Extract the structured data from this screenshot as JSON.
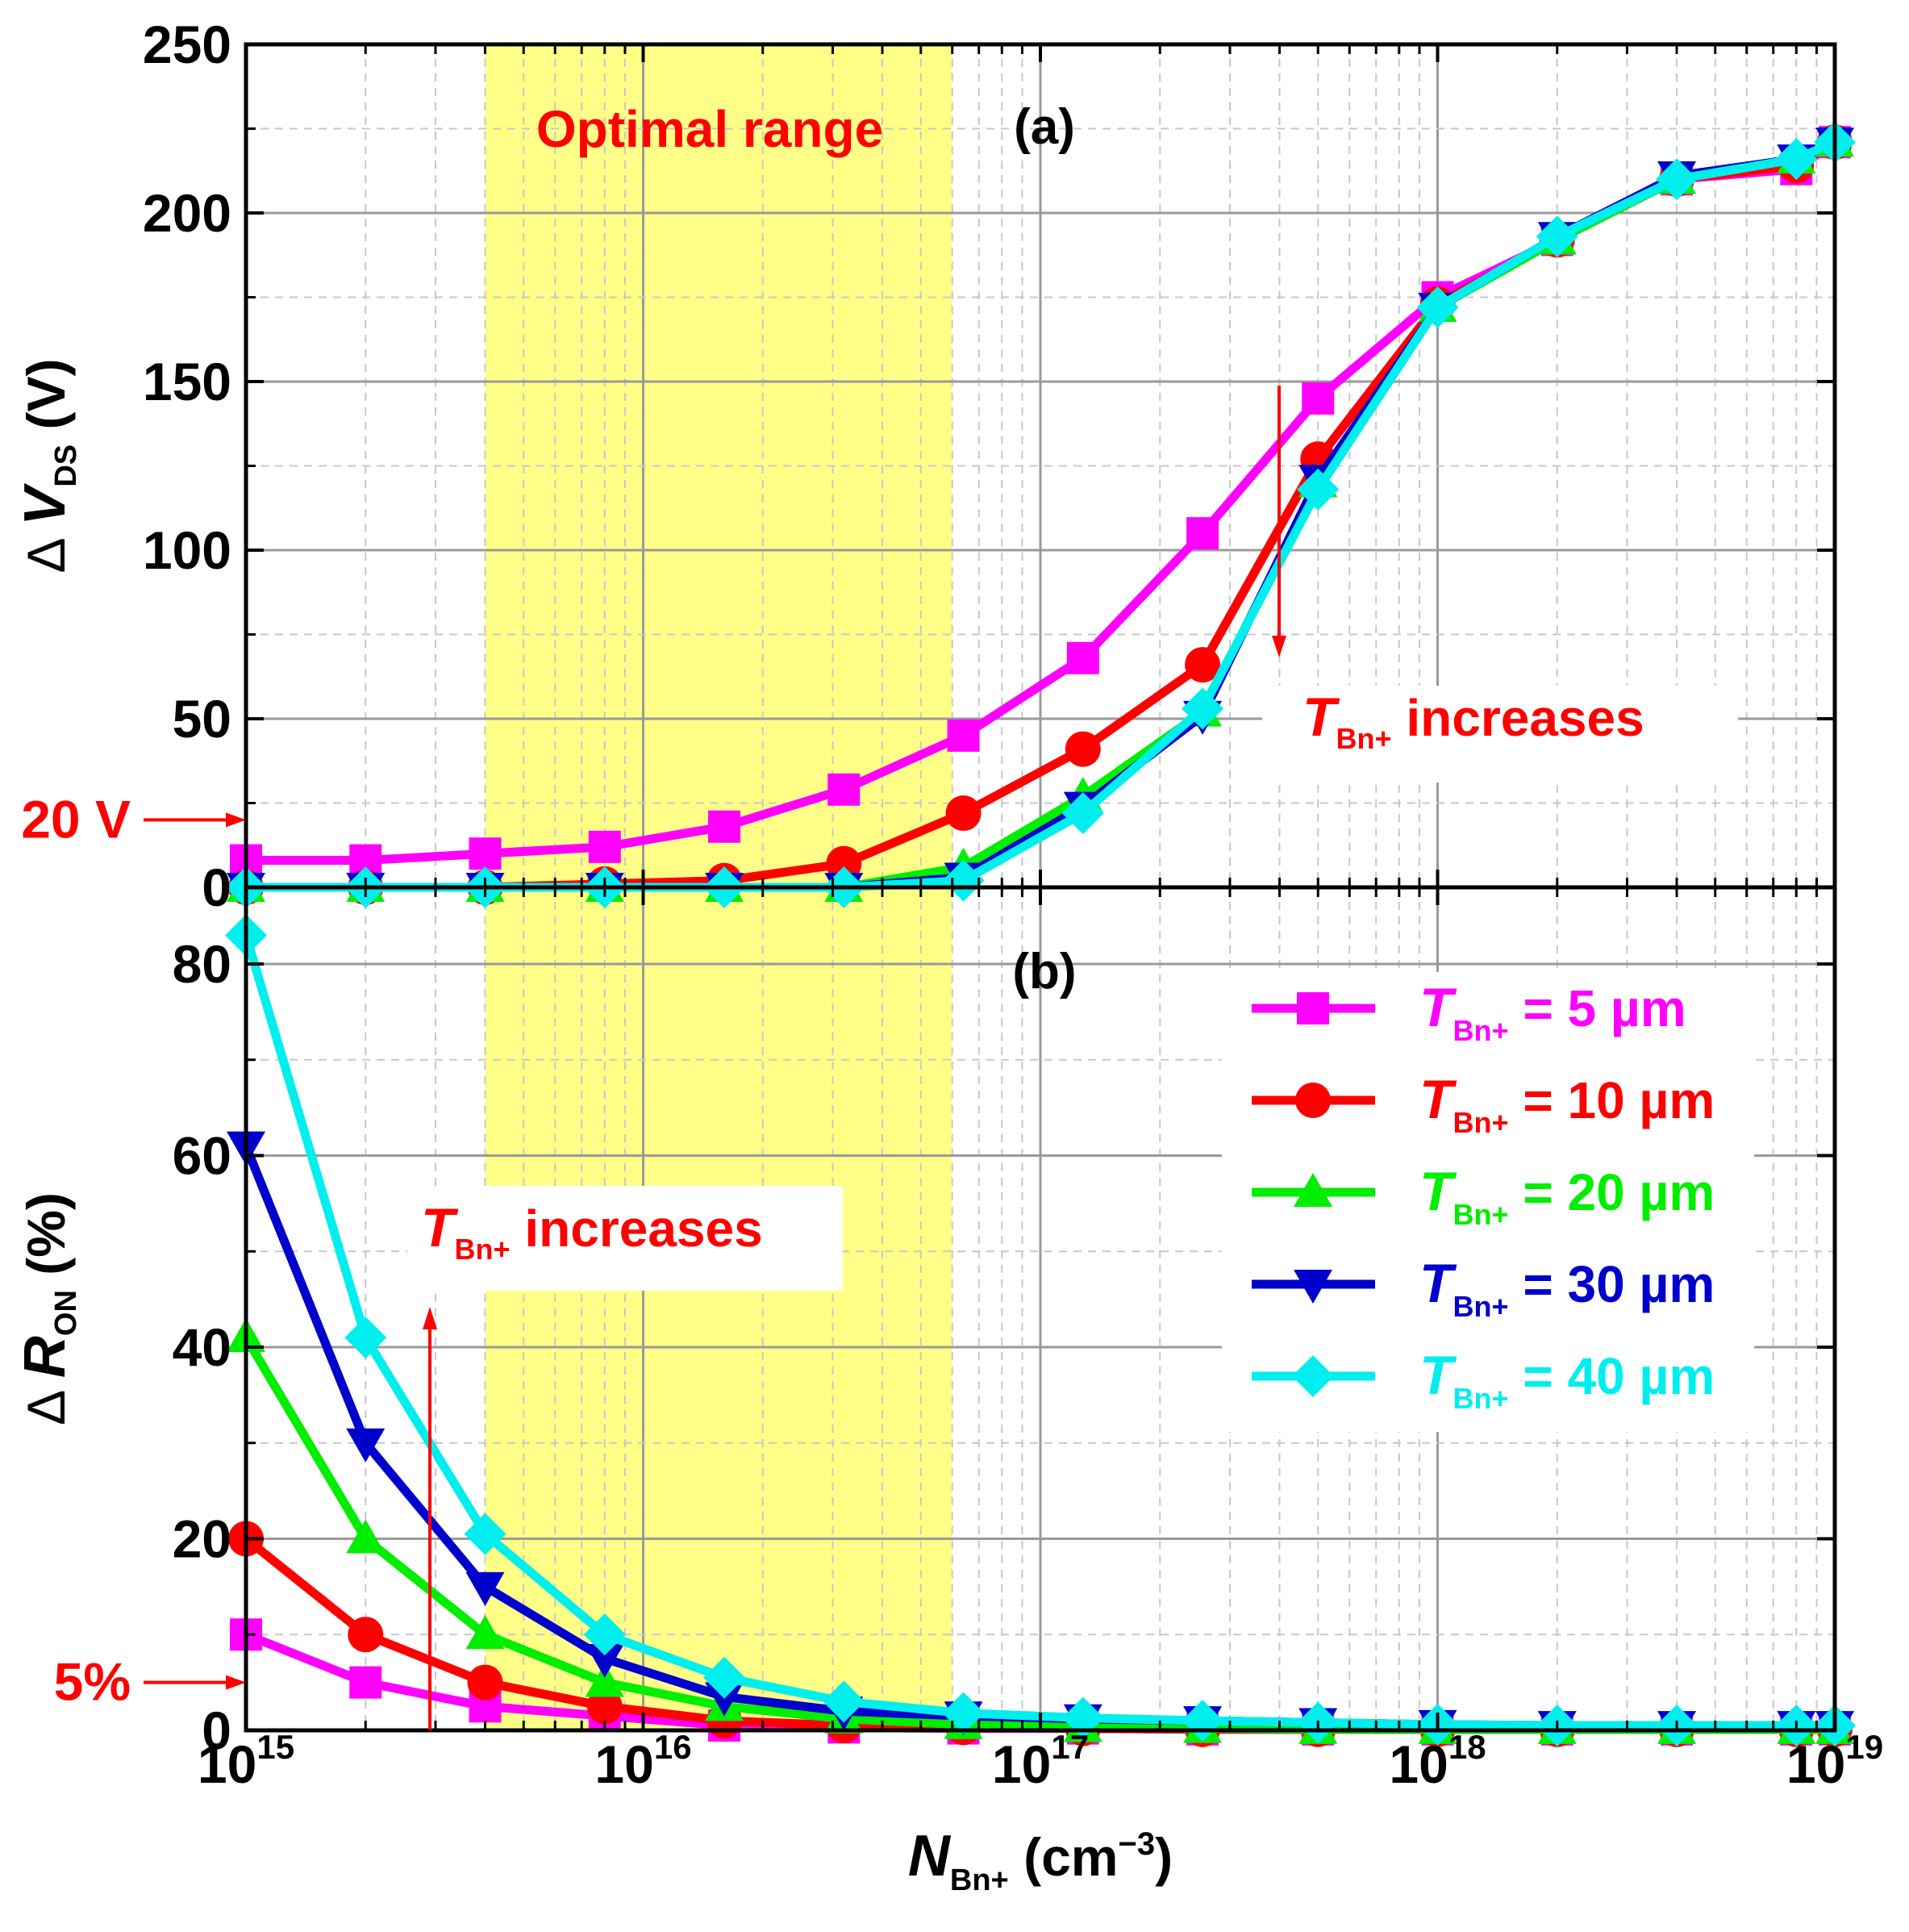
{
  "chart_data": [
    {
      "panel": "(a)",
      "type": "line",
      "xscale": "log",
      "xlim": [
        1000000000000000.0,
        1e+19
      ],
      "ylim": [
        0,
        250
      ],
      "yticks": [
        "0",
        "50",
        "100",
        "150",
        "200",
        "250"
      ],
      "ylabel": {
        "prefix": "Δ",
        "var": "V",
        "sub": "DS",
        "unit": " (V)"
      },
      "x": [
        1000000000000000.0,
        2000000000000000.0,
        4000000000000000.0,
        8000000000000000.0,
        1.6e+16,
        3.2e+16,
        6.4e+16,
        1.28e+17,
        2.56e+17,
        5e+17,
        1e+18,
        2e+18,
        4e+18,
        8e+18,
        1e+19
      ],
      "series": [
        {
          "name": "5 µm",
          "color": "#ff00ff",
          "marker": "square",
          "values": [
            8,
            8,
            10,
            12,
            18,
            29,
            45,
            68,
            105,
            145,
            175,
            192,
            210,
            213,
            221
          ]
        },
        {
          "name": "10 µm",
          "color": "#ff0000",
          "marker": "circle",
          "values": [
            0,
            0,
            0,
            1,
            2,
            7,
            22,
            41,
            66,
            127,
            173,
            192,
            210,
            214,
            221
          ]
        },
        {
          "name": "20 µm",
          "color": "#00ee00",
          "marker": "triangle",
          "values": [
            0,
            0,
            0,
            0,
            0,
            0,
            6,
            27,
            52,
            120,
            172,
            192,
            210,
            216,
            221
          ]
        },
        {
          "name": "30 µm",
          "color": "#0000cc",
          "marker": "tri-down",
          "values": [
            0,
            0,
            0,
            0,
            0,
            0,
            3,
            24,
            51,
            121,
            172,
            193,
            211,
            216,
            221
          ]
        },
        {
          "name": "40 µm",
          "color": "#00eeee",
          "marker": "diamond",
          "values": [
            0,
            0,
            0,
            0,
            0,
            0,
            2,
            22,
            53,
            118,
            172,
            193,
            210,
            216,
            221
          ]
        }
      ],
      "annotations": {
        "shaded_label": "Optimal range",
        "arrow_label_var": "T",
        "arrow_label_sub": "Bn+",
        "arrow_label_text": " increases",
        "reference_label": "20 V",
        "reference_value": 20
      }
    },
    {
      "panel": "(b)",
      "type": "line",
      "xscale": "log",
      "xlim": [
        1000000000000000.0,
        1e+19
      ],
      "ylim": [
        0,
        88
      ],
      "yticks": [
        "0",
        "20",
        "40",
        "60",
        "80"
      ],
      "ylabel": {
        "prefix": "Δ",
        "var": "R",
        "sub": "ON",
        "unit": " (%)"
      },
      "x": [
        1000000000000000.0,
        2000000000000000.0,
        4000000000000000.0,
        8000000000000000.0,
        1.6e+16,
        3.2e+16,
        6.4e+16,
        1.28e+17,
        2.56e+17,
        5e+17,
        1e+18,
        2e+18,
        4e+18,
        8e+18,
        1e+19
      ],
      "series": [
        {
          "name": "5 µm",
          "color": "#ff00ff",
          "marker": "square",
          "values": [
            10,
            5,
            2.5,
            1.5,
            0.5,
            0.3,
            0.2,
            0.2,
            0.1,
            0.1,
            0.1,
            0.1,
            0.1,
            0.1,
            0.1
          ]
        },
        {
          "name": "10 µm",
          "color": "#ff0000",
          "marker": "circle",
          "values": [
            20,
            10,
            5,
            2.5,
            1,
            0.5,
            0.3,
            0.2,
            0.1,
            0.1,
            0.1,
            0.1,
            0.1,
            0.1,
            0.1
          ]
        },
        {
          "name": "20 µm",
          "color": "#00ee00",
          "marker": "triangle",
          "values": [
            41,
            20,
            10,
            5,
            2.5,
            1.2,
            0.6,
            0.3,
            0.2,
            0.1,
            0.1,
            0.1,
            0.1,
            0.1,
            0.1
          ]
        },
        {
          "name": "30 µm",
          "color": "#0000cc",
          "marker": "tri-down",
          "values": [
            61,
            30,
            15,
            7.5,
            3.5,
            2,
            1.5,
            1.2,
            1,
            0.8,
            0.6,
            0.5,
            0.5,
            0.5,
            0.5
          ]
        },
        {
          "name": "40 µm",
          "color": "#00eeee",
          "marker": "diamond",
          "values": [
            83,
            41,
            20.5,
            10,
            5.5,
            3,
            1.8,
            1.3,
            1,
            0.8,
            0.6,
            0.5,
            0.5,
            0.5,
            0.5
          ]
        }
      ],
      "annotations": {
        "arrow_label_var": "T",
        "arrow_label_sub": "Bn+",
        "arrow_label_text": " increases",
        "reference_label": "5%",
        "reference_value": 5
      }
    }
  ],
  "shared": {
    "xtick_exponents": [
      "15",
      "16",
      "17",
      "18",
      "19"
    ],
    "xtick_base": "10",
    "shaded_range": [
      4000000000000000.0,
      6e+16
    ],
    "shaded_color": "#ffff88",
    "xlabel": {
      "var": "N",
      "sub": "Bn+",
      "unit": " (cm",
      "sup": "−3",
      "close": ")"
    },
    "legend": {
      "var": "T",
      "sub": "Bn+",
      "entries": [
        {
          "value": "=   5 µm"
        },
        {
          "value": "= 10 µm"
        },
        {
          "value": "= 20 µm"
        },
        {
          "value": "= 30 µm"
        },
        {
          "value": "= 40 µm"
        }
      ]
    }
  }
}
